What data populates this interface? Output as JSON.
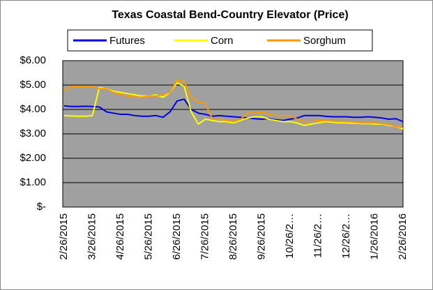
{
  "chart_data": {
    "type": "line",
    "title": "Texas Coastal Bend-Country Elevator (Price)",
    "categories": [
      "2/26/2015",
      null,
      null,
      null,
      "3/26/2015",
      null,
      null,
      null,
      "4/26/2015",
      null,
      null,
      null,
      "5/26/2015",
      null,
      null,
      null,
      "6/26/2015",
      null,
      null,
      null,
      "7/26/2015",
      null,
      null,
      null,
      "8/26/2015",
      null,
      null,
      null,
      "9/26/2015",
      null,
      null,
      null,
      "10/26/2…",
      null,
      null,
      null,
      "11/26/2…",
      null,
      null,
      null,
      "12/26/2…",
      null,
      null,
      null,
      "1/26/2016",
      null,
      null,
      null,
      "2/26/2016"
    ],
    "series": [
      {
        "name": "Futures",
        "color": "#0000e0",
        "values": [
          4.15,
          4.12,
          4.12,
          4.13,
          4.12,
          4.1,
          3.9,
          3.85,
          3.8,
          3.8,
          3.75,
          3.72,
          3.72,
          3.75,
          3.68,
          3.9,
          4.35,
          4.42,
          4.0,
          3.85,
          3.8,
          3.72,
          3.75,
          3.72,
          3.7,
          3.68,
          3.65,
          3.62,
          3.6,
          3.62,
          3.58,
          3.55,
          3.6,
          3.65,
          3.75,
          3.75,
          3.75,
          3.72,
          3.7,
          3.7,
          3.7,
          3.68,
          3.68,
          3.7,
          3.68,
          3.65,
          3.6,
          3.62,
          3.5
        ]
      },
      {
        "name": "Corn",
        "color": "#ffff00",
        "values": [
          3.75,
          3.73,
          3.72,
          3.72,
          3.75,
          4.9,
          4.85,
          4.75,
          4.7,
          4.65,
          4.6,
          4.55,
          4.55,
          4.6,
          4.5,
          4.7,
          5.1,
          4.95,
          3.9,
          3.4,
          3.6,
          3.55,
          3.5,
          3.5,
          3.45,
          3.55,
          3.65,
          3.7,
          3.7,
          3.6,
          3.55,
          3.5,
          3.5,
          3.45,
          3.35,
          3.4,
          3.45,
          3.5,
          3.48,
          3.45,
          3.45,
          3.43,
          3.42,
          3.42,
          3.4,
          3.4,
          3.35,
          3.3,
          3.2
        ]
      },
      {
        "name": "Sorghum",
        "color": "#ff9900",
        "values": [
          4.75,
          4.95,
          4.95,
          4.95,
          4.95,
          4.85,
          4.85,
          4.7,
          4.6,
          4.55,
          4.5,
          4.5,
          4.55,
          4.55,
          4.6,
          4.7,
          5.2,
          5.15,
          4.5,
          4.3,
          4.25,
          3.6,
          3.6,
          3.55,
          3.5,
          3.6,
          3.85,
          3.85,
          3.9,
          3.8,
          3.75,
          3.75,
          3.75,
          3.6,
          3.5,
          3.5,
          3.55,
          3.55,
          3.52,
          3.5,
          3.5,
          3.48,
          3.45,
          3.45,
          3.45,
          3.42,
          3.38,
          3.3,
          3.25
        ]
      }
    ],
    "ylim": [
      0,
      6
    ],
    "yticks": [
      {
        "value": 0,
        "label": "$-"
      },
      {
        "value": 1,
        "label": "$1.00"
      },
      {
        "value": 2,
        "label": "$2.00"
      },
      {
        "value": 3,
        "label": "$3.00"
      },
      {
        "value": 4,
        "label": "$4.00"
      },
      {
        "value": 5,
        "label": "$5.00"
      },
      {
        "value": 6,
        "label": "$6.00"
      }
    ],
    "grid": true
  }
}
